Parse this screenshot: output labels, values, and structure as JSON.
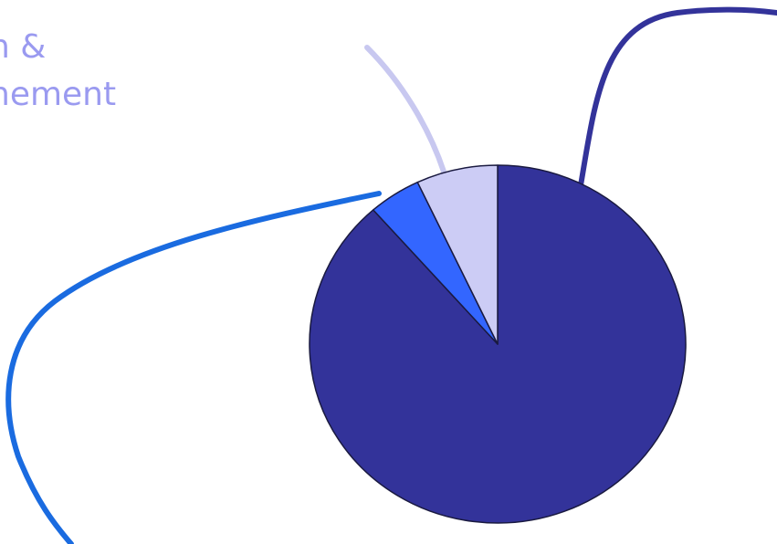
{
  "chart_data": {
    "type": "pie",
    "start_angle_deg": 0,
    "direction": "clockwise",
    "slices": [
      {
        "name": "",
        "value": 88.5,
        "color": "#33339a"
      },
      {
        "name": "",
        "value": 4.5,
        "color": "#3366ff"
      },
      {
        "name": "",
        "value": 7.0,
        "color": "#ccccf5"
      }
    ],
    "visible_labels": [
      {
        "text_line1": "n &",
        "text_line2": "nement",
        "color": "#9a9af0"
      }
    ],
    "leader_line_colors": [
      "#33339a",
      "#1a6be0",
      "#c8c8f0"
    ]
  }
}
